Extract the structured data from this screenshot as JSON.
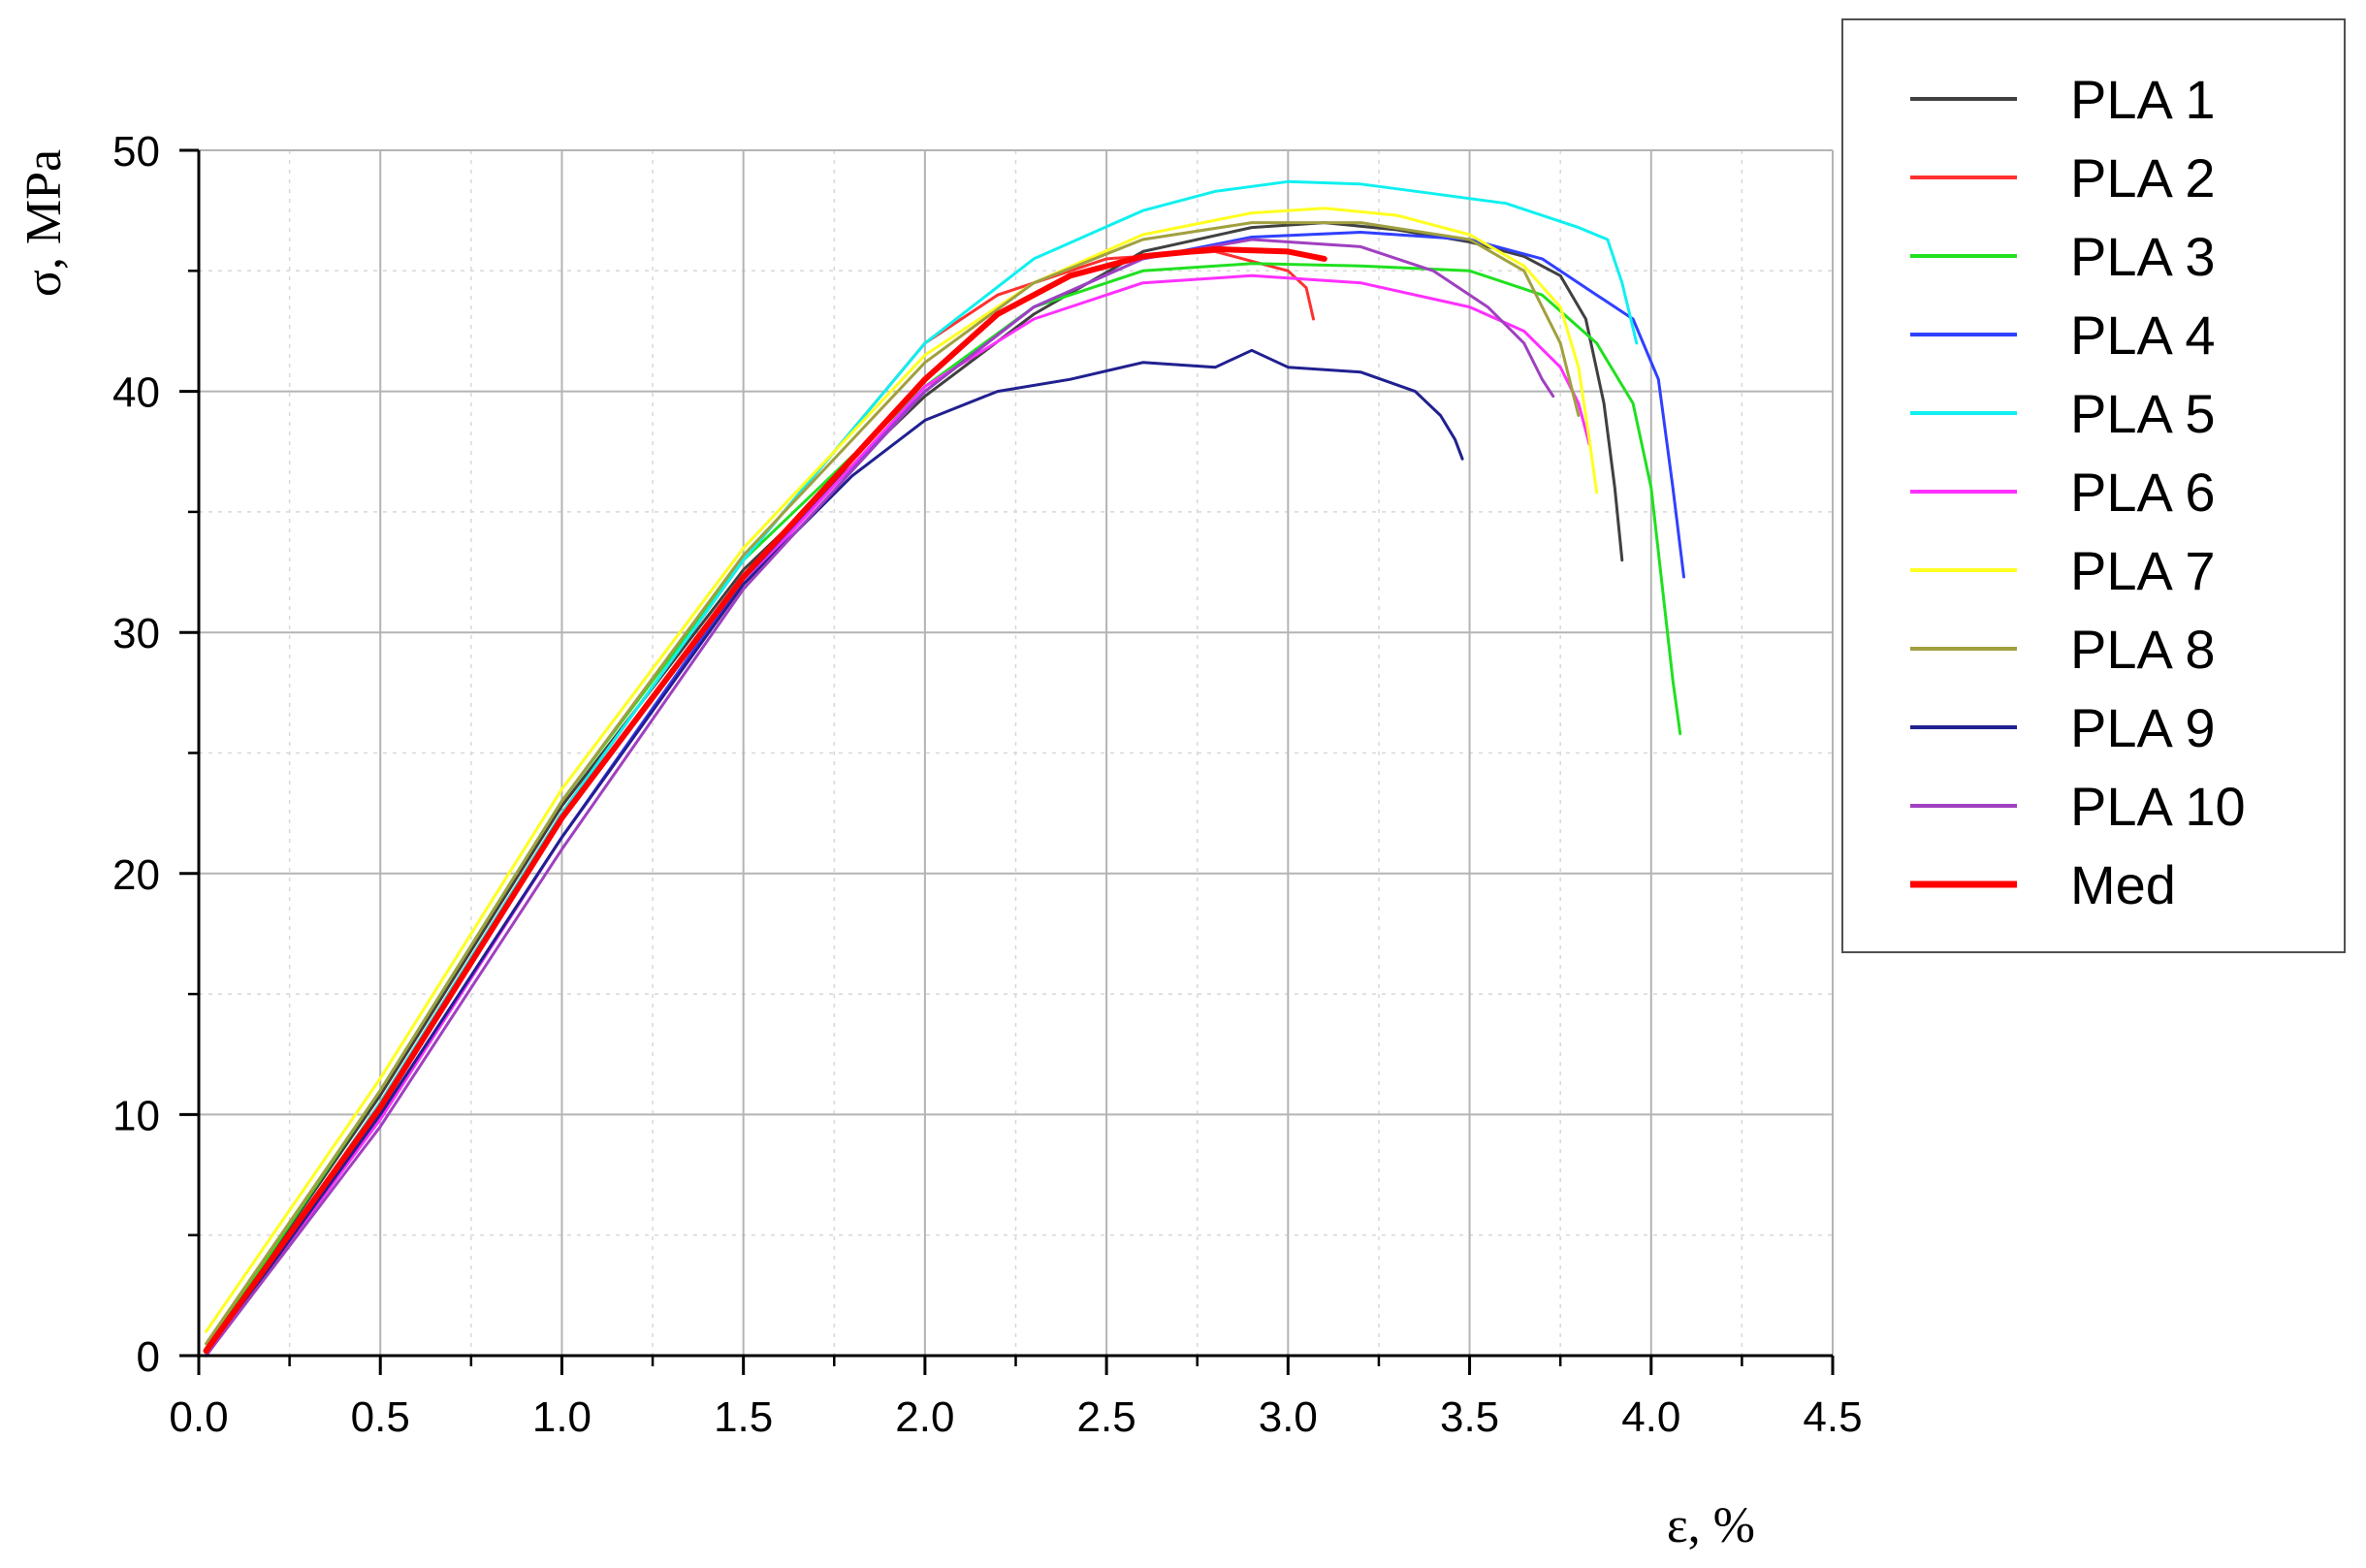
{
  "chart_data": {
    "type": "line",
    "title": "",
    "xlabel": "ε, %",
    "ylabel": "σ, MPa",
    "xlim": [
      0,
      4.5
    ],
    "ylim": [
      0,
      50
    ],
    "xticks": [
      "0.0",
      "0.5",
      "1.0",
      "1.5",
      "2.0",
      "2.5",
      "3.0",
      "3.5",
      "4.0",
      "4.5"
    ],
    "yticks": [
      "0",
      "10",
      "20",
      "30",
      "40",
      "50"
    ],
    "grid": true,
    "legend_position": "top-right",
    "series": [
      {
        "name": "PLA 1",
        "color": "#404040",
        "x": [
          0.02,
          0.5,
          1.0,
          1.5,
          2.0,
          2.3,
          2.6,
          2.9,
          3.1,
          3.3,
          3.5,
          3.65,
          3.75,
          3.82,
          3.87,
          3.9,
          3.92
        ],
        "y": [
          0.3,
          10.8,
          22.8,
          32.6,
          39.8,
          43.2,
          45.8,
          46.8,
          47.0,
          46.7,
          46.2,
          45.6,
          44.8,
          43.0,
          39.5,
          36.0,
          33.0
        ]
      },
      {
        "name": "PLA 2",
        "color": "#ff3030",
        "x": [
          0.02,
          0.5,
          1.0,
          1.5,
          2.0,
          2.2,
          2.5,
          2.8,
          3.0,
          3.05,
          3.07
        ],
        "y": [
          0.0,
          10.5,
          22.5,
          33.0,
          42.0,
          44.0,
          45.5,
          45.8,
          45.0,
          44.3,
          43.0
        ]
      },
      {
        "name": "PLA 3",
        "color": "#20e020",
        "x": [
          0.02,
          0.5,
          1.0,
          1.5,
          2.0,
          2.3,
          2.6,
          2.9,
          3.2,
          3.5,
          3.7,
          3.85,
          3.95,
          4.0,
          4.03,
          4.06,
          4.08
        ],
        "y": [
          0.3,
          11.0,
          23.0,
          33.0,
          40.2,
          43.5,
          45.0,
          45.3,
          45.2,
          45.0,
          44.0,
          42.0,
          39.5,
          36.0,
          32.0,
          28.0,
          25.8
        ]
      },
      {
        "name": "PLA 4",
        "color": "#3040ff",
        "x": [
          0.02,
          0.5,
          1.0,
          1.5,
          2.0,
          2.3,
          2.6,
          2.9,
          3.2,
          3.5,
          3.7,
          3.85,
          3.95,
          4.02,
          4.06,
          4.09
        ],
        "y": [
          0.0,
          10.0,
          21.5,
          32.2,
          40.0,
          43.5,
          45.5,
          46.4,
          46.6,
          46.3,
          45.5,
          44.0,
          43.0,
          40.5,
          36.0,
          32.3
        ]
      },
      {
        "name": "PLA 5",
        "color": "#10f0f0",
        "x": [
          0.02,
          0.5,
          1.0,
          1.5,
          2.0,
          2.3,
          2.6,
          2.8,
          3.0,
          3.2,
          3.4,
          3.6,
          3.8,
          3.88,
          3.92,
          3.96
        ],
        "y": [
          0.0,
          10.5,
          22.5,
          33.0,
          42.0,
          45.5,
          47.5,
          48.3,
          48.7,
          48.6,
          48.2,
          47.8,
          46.8,
          46.3,
          44.5,
          42.0
        ]
      },
      {
        "name": "PLA 6",
        "color": "#ff30ff",
        "x": [
          0.02,
          0.5,
          1.0,
          1.5,
          2.0,
          2.3,
          2.6,
          2.9,
          3.2,
          3.5,
          3.65,
          3.75,
          3.8,
          3.83
        ],
        "y": [
          0.0,
          9.8,
          21.5,
          32.0,
          40.2,
          43.0,
          44.5,
          44.8,
          44.5,
          43.5,
          42.5,
          41.0,
          39.5,
          37.8
        ]
      },
      {
        "name": "PLA 7",
        "color": "#ffff20",
        "x": [
          0.02,
          0.5,
          1.0,
          1.5,
          2.0,
          2.3,
          2.6,
          2.9,
          3.1,
          3.3,
          3.5,
          3.65,
          3.75,
          3.8,
          3.83,
          3.85
        ],
        "y": [
          1.0,
          11.5,
          23.5,
          33.5,
          41.5,
          44.5,
          46.5,
          47.4,
          47.6,
          47.3,
          46.5,
          45.2,
          43.5,
          41.0,
          38.0,
          35.8
        ]
      },
      {
        "name": "PLA 8",
        "color": "#a0a040",
        "x": [
          0.02,
          0.5,
          1.0,
          1.5,
          2.0,
          2.3,
          2.6,
          2.9,
          3.2,
          3.5,
          3.65,
          3.75,
          3.8
        ],
        "y": [
          0.5,
          11.0,
          23.0,
          33.2,
          41.2,
          44.5,
          46.3,
          47.0,
          47.0,
          46.3,
          45.0,
          42.0,
          39.0
        ]
      },
      {
        "name": "PLA 9",
        "color": "#202090",
        "x": [
          0.02,
          0.5,
          1.0,
          1.5,
          1.8,
          2.0,
          2.2,
          2.4,
          2.6,
          2.8,
          2.9,
          3.0,
          3.2,
          3.35,
          3.42,
          3.46,
          3.48
        ],
        "y": [
          0.0,
          10.0,
          21.5,
          32.0,
          36.5,
          38.8,
          40.0,
          40.5,
          41.2,
          41.0,
          41.7,
          41.0,
          40.8,
          40.0,
          39.0,
          38.0,
          37.2
        ]
      },
      {
        "name": "PLA 10",
        "color": "#a040c0",
        "x": [
          0.02,
          0.5,
          1.0,
          1.5,
          2.0,
          2.3,
          2.6,
          2.9,
          3.2,
          3.4,
          3.55,
          3.65,
          3.7,
          3.73
        ],
        "y": [
          0.0,
          9.5,
          21.0,
          31.8,
          40.0,
          43.5,
          45.5,
          46.3,
          46.0,
          45.0,
          43.5,
          42.0,
          40.5,
          39.8
        ]
      },
      {
        "name": "Med",
        "color": "#ff0000",
        "width": 6,
        "x": [
          0.02,
          0.5,
          1.0,
          1.5,
          2.0,
          2.2,
          2.4,
          2.6,
          2.8,
          3.0,
          3.1
        ],
        "y": [
          0.2,
          10.3,
          22.3,
          32.3,
          40.5,
          43.2,
          44.8,
          45.6,
          45.9,
          45.8,
          45.5
        ]
      }
    ]
  }
}
